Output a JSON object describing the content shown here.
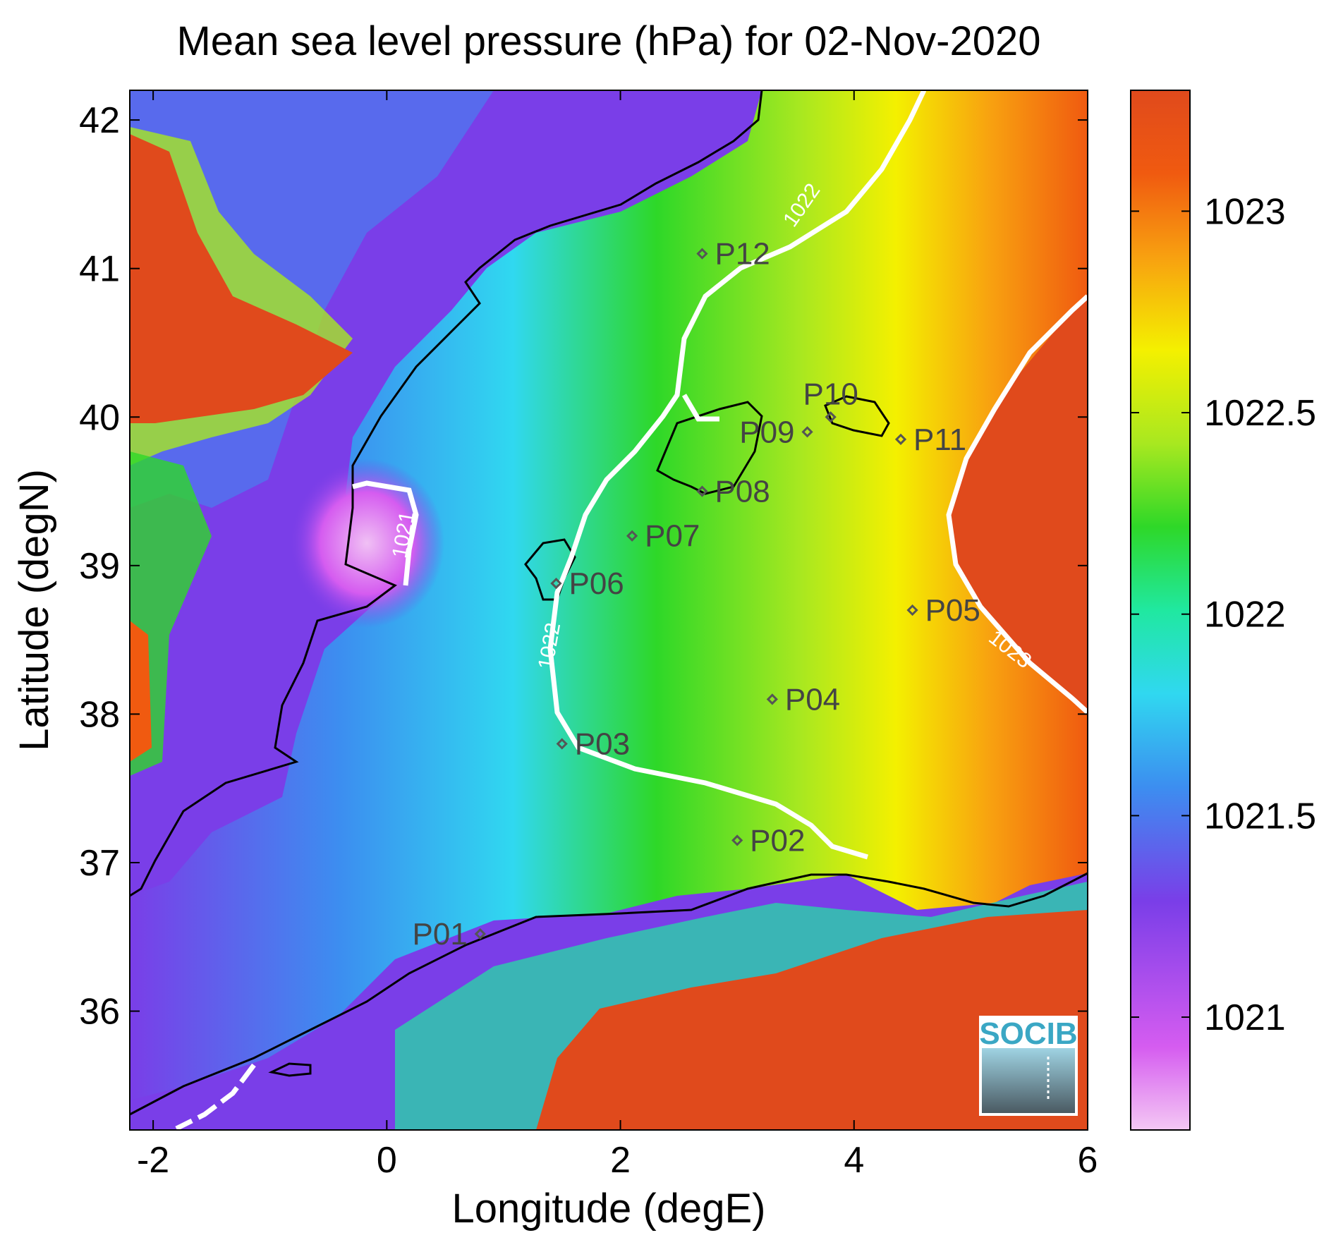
{
  "title": "Mean sea level pressure (hPa) for 02-Nov-2020",
  "x_axis": {
    "label": "Longitude (degE)",
    "range": [
      -2.2,
      6
    ],
    "ticks": [
      {
        "value": -2,
        "label": "-2"
      },
      {
        "value": 0,
        "label": "0"
      },
      {
        "value": 2,
        "label": "2"
      },
      {
        "value": 4,
        "label": "4"
      },
      {
        "value": 6,
        "label": "6"
      }
    ]
  },
  "y_axis": {
    "label": "Latitude (degN)",
    "range": [
      35.2,
      42.2
    ],
    "ticks": [
      {
        "value": 36,
        "label": "36"
      },
      {
        "value": 37,
        "label": "37"
      },
      {
        "value": 38,
        "label": "38"
      },
      {
        "value": 39,
        "label": "39"
      },
      {
        "value": 40,
        "label": "40"
      },
      {
        "value": 41,
        "label": "41"
      },
      {
        "value": 42,
        "label": "42"
      }
    ]
  },
  "colorbar": {
    "range": [
      1020.72,
      1023.3
    ],
    "ticks": [
      {
        "value": 1021,
        "label": "1021"
      },
      {
        "value": 1021.5,
        "label": "1021.5"
      },
      {
        "value": 1022,
        "label": "1022"
      },
      {
        "value": 1022.5,
        "label": "1022.5"
      },
      {
        "value": 1023,
        "label": "1023"
      }
    ],
    "colors": [
      "#f4c8f4",
      "#d55cf0",
      "#7a3ee8",
      "#3c8ef0",
      "#30d8f0",
      "#20e8a0",
      "#2ed828",
      "#a8e820",
      "#f4f000",
      "#f8a010",
      "#f05a10",
      "#e04a1c"
    ]
  },
  "contour_labels": [
    {
      "text": "1022",
      "lon": 3.6,
      "lat": 41.4
    },
    {
      "text": "1021",
      "lon": 0.2,
      "lat": 39.2
    },
    {
      "text": "1022",
      "lon": 1.45,
      "lat": 38.45
    },
    {
      "text": "1023",
      "lon": 5.3,
      "lat": 38.4
    }
  ],
  "stations": [
    {
      "id": "P01",
      "lon": 0.8,
      "lat": 36.52,
      "side": "left"
    },
    {
      "id": "P02",
      "lon": 3.0,
      "lat": 37.15,
      "side": "right"
    },
    {
      "id": "P03",
      "lon": 1.5,
      "lat": 37.8,
      "side": "right"
    },
    {
      "id": "P04",
      "lon": 3.3,
      "lat": 38.1,
      "side": "right"
    },
    {
      "id": "P05",
      "lon": 4.5,
      "lat": 38.7,
      "side": "right"
    },
    {
      "id": "P06",
      "lon": 1.45,
      "lat": 38.88,
      "side": "right"
    },
    {
      "id": "P07",
      "lon": 2.1,
      "lat": 39.2,
      "side": "right"
    },
    {
      "id": "P08",
      "lon": 2.7,
      "lat": 39.5,
      "side": "right"
    },
    {
      "id": "P09",
      "lon": 3.6,
      "lat": 39.9,
      "side": "left"
    },
    {
      "id": "P10",
      "lon": 3.8,
      "lat": 40.0,
      "side": "above"
    },
    {
      "id": "P11",
      "lon": 4.4,
      "lat": 39.85,
      "side": "right"
    },
    {
      "id": "P12",
      "lon": 2.7,
      "lat": 41.1,
      "side": "right"
    }
  ],
  "logo": {
    "text": "SOCIB"
  },
  "colors": {
    "coastline": "#000000",
    "contour": "#ffffff",
    "station_marker": "#555555",
    "land_high": "#e04a1c"
  }
}
